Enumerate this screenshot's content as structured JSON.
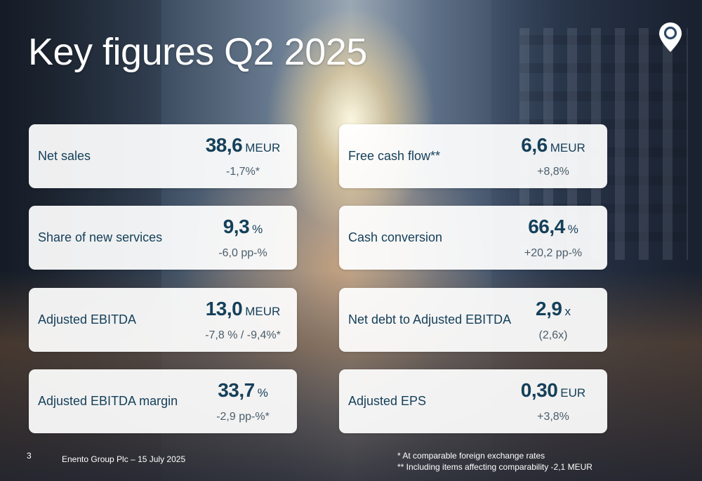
{
  "slide": {
    "title": "Key figures Q2 2025",
    "page_number": "3",
    "company_date": "Enento Group Plc – 15 July 2025",
    "logo_icon": "location-pin-icon"
  },
  "cards": [
    {
      "label": "Net sales",
      "value": "38,6",
      "unit": "MEUR",
      "change": "-1,7%*"
    },
    {
      "label": "Free cash flow**",
      "value": "6,6",
      "unit": "MEUR",
      "change": "+8,8%"
    },
    {
      "label": "Share of new services",
      "value": "9,3",
      "unit": "%",
      "change": "-6,0 pp-%"
    },
    {
      "label": "Cash conversion",
      "value": "66,4",
      "unit": "%",
      "change": "+20,2 pp-%"
    },
    {
      "label": "Adjusted EBITDA",
      "value": "13,0",
      "unit": "MEUR",
      "change": "-7,8 % / -9,4%*"
    },
    {
      "label": "Net debt to Adjusted EBITDA",
      "value": "2,9",
      "unit": "x",
      "change": "(2,6x)"
    },
    {
      "label": "Adjusted EBITDA margin",
      "value": "33,7",
      "unit": "%",
      "change": "-2,9 pp-%*"
    },
    {
      "label": "Adjusted EPS",
      "value": "0,30",
      "unit": "EUR",
      "change": "+3,8%"
    }
  ],
  "footnotes": [
    "* At comparable foreign exchange rates",
    "** Including items affecting comparability -2,1 MEUR"
  ],
  "colors": {
    "text_primary": "#15405a",
    "text_secondary": "#4a5d6b",
    "card_bg": "#ffffff",
    "title": "#ffffff"
  }
}
